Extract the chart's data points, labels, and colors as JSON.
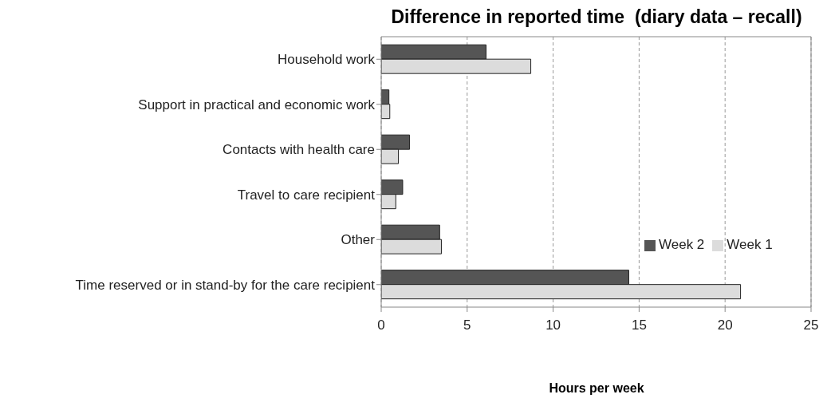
{
  "chart_data": {
    "type": "bar",
    "orientation": "horizontal",
    "title": "Difference in reported time  (diary data – recall)",
    "xlabel": "Hours per week",
    "categories": [
      "Household work",
      "Support in practical and economic work",
      "Contacts with health care",
      "Travel to care recipient",
      "Other",
      "Time reserved or in stand-by for the care recipient"
    ],
    "series": [
      {
        "name": "Week 2",
        "color": "#555555",
        "values": [
          6.1,
          0.45,
          1.65,
          1.25,
          3.4,
          14.4
        ]
      },
      {
        "name": "Week 1",
        "color": "#dcdcdc",
        "values": [
          8.7,
          0.5,
          1.0,
          0.85,
          3.5,
          20.9
        ]
      }
    ],
    "xlim": [
      0,
      25
    ],
    "xticks": [
      0,
      5,
      10,
      15,
      20,
      25
    ],
    "grid": "x",
    "legend": "right"
  }
}
